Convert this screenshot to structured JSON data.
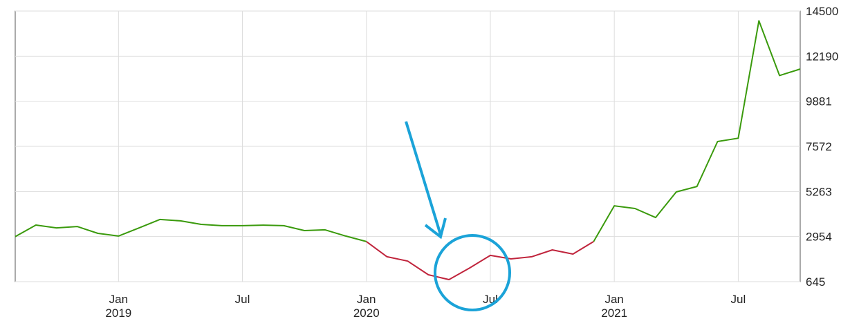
{
  "chart_data": {
    "type": "line",
    "x": [
      "2018-08",
      "2018-09",
      "2018-10",
      "2018-11",
      "2018-12",
      "2019-01",
      "2019-02",
      "2019-03",
      "2019-04",
      "2019-05",
      "2019-06",
      "2019-07",
      "2019-08",
      "2019-09",
      "2019-10",
      "2019-11",
      "2019-12",
      "2020-01",
      "2020-02",
      "2020-03",
      "2020-04",
      "2020-05",
      "2020-06",
      "2020-07",
      "2020-08",
      "2020-09",
      "2020-10",
      "2020-11",
      "2020-12",
      "2021-01",
      "2021-02",
      "2021-03",
      "2021-04",
      "2021-05",
      "2021-06",
      "2021-07",
      "2021-08",
      "2021-09",
      "2021-10"
    ],
    "series": [
      {
        "color": "#3a9a0c",
        "values": [
          2950,
          3544,
          3400,
          3470,
          3120,
          2980,
          3400,
          3830,
          3760,
          3580,
          3510,
          3510,
          3540,
          3510,
          3260,
          3300,
          2980,
          2700,
          null,
          null,
          null,
          null,
          null,
          null,
          null,
          null,
          null,
          null,
          2700,
          4530,
          4390,
          3930,
          5240,
          5520,
          7820,
          7990,
          14000,
          11200,
          11530
        ]
      },
      {
        "color": "#c0243c",
        "values": [
          null,
          null,
          null,
          null,
          null,
          null,
          null,
          null,
          null,
          null,
          null,
          null,
          null,
          null,
          null,
          null,
          null,
          2700,
          1920,
          1700,
          1000,
          750,
          1350,
          1990,
          1810,
          1920,
          2270,
          2060,
          2700,
          null,
          null,
          null,
          null,
          null,
          null,
          null,
          null,
          null,
          null
        ]
      }
    ],
    "xlim": [
      "2018-08",
      "2021-10"
    ],
    "xticks": [
      {
        "value": "2019-01",
        "label": [
          "Jan",
          "2019"
        ]
      },
      {
        "value": "2019-07",
        "label": [
          "Jul"
        ]
      },
      {
        "value": "2020-01",
        "label": [
          "Jan",
          "2020"
        ]
      },
      {
        "value": "2020-07",
        "label": [
          "Jul"
        ]
      },
      {
        "value": "2021-01",
        "label": [
          "Jan",
          "2021"
        ]
      },
      {
        "value": "2021-07",
        "label": [
          "Jul"
        ]
      }
    ],
    "ylim": [
      645,
      14500
    ],
    "yticks": [
      645,
      2954,
      5263,
      7572,
      9881,
      12190,
      14500
    ],
    "grid": true
  }
}
